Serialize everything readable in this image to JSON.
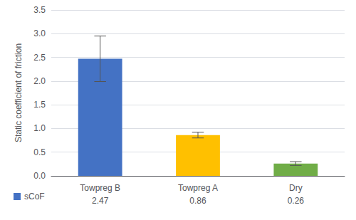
{
  "chart_data": {
    "type": "bar",
    "ylabel": "Static coefficient of friction",
    "categories": [
      "Towpreg B",
      "Towpreg A",
      "Dry"
    ],
    "series": [
      {
        "name": "sCoF",
        "color": "#4472C4",
        "colors": [
          "#4472C4",
          "#FFC000",
          "#70AD47"
        ],
        "values": [
          2.47,
          0.86,
          0.26
        ],
        "errors": [
          0.48,
          0.06,
          0.04
        ]
      }
    ],
    "ylim": [
      0,
      3.5
    ],
    "yticks": [
      {
        "value": 0.0,
        "label": "0.0"
      },
      0.5,
      {
        "value": 1.0,
        "label": "1.0"
      },
      1.5,
      {
        "value": 2.0,
        "label": "2.0"
      },
      2.5,
      {
        "value": 3.0,
        "label": "3.0"
      },
      3.5
    ],
    "grid": true,
    "data_labels": true
  }
}
